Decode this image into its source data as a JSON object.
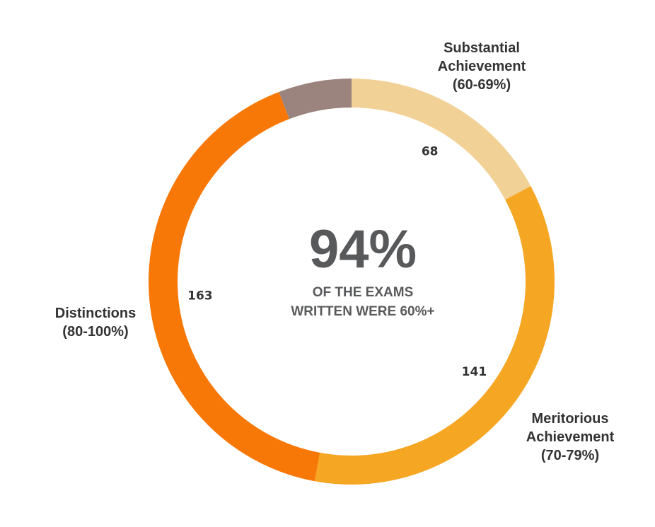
{
  "chart_data": {
    "type": "pie",
    "style": "donut",
    "slices": [
      {
        "category": "Substantial Achievement (60-69%)",
        "label_lines": [
          "Substantial",
          "Achievement",
          "(60-69%)"
        ],
        "value": 68,
        "value_label": "68",
        "color": "#f1d196"
      },
      {
        "category": "Meritorious Achievement (70-79%)",
        "label_lines": [
          "Meritorious",
          "Achievement",
          "(70-79%)"
        ],
        "value": 141,
        "value_label": "141",
        "color": "#f5a623"
      },
      {
        "category": "Distinctions (80-100%)",
        "label_lines": [
          "Distinctions",
          "(80-100%)"
        ],
        "value": 163,
        "value_label": "163",
        "color": "#f77807"
      },
      {
        "category": "",
        "label_lines": [],
        "value": 23,
        "value_label": "",
        "color": "#9b847e"
      }
    ],
    "center": {
      "headline": "94%",
      "lines": [
        "OF THE EXAMS",
        "WRITTEN WERE 60%+"
      ]
    }
  }
}
